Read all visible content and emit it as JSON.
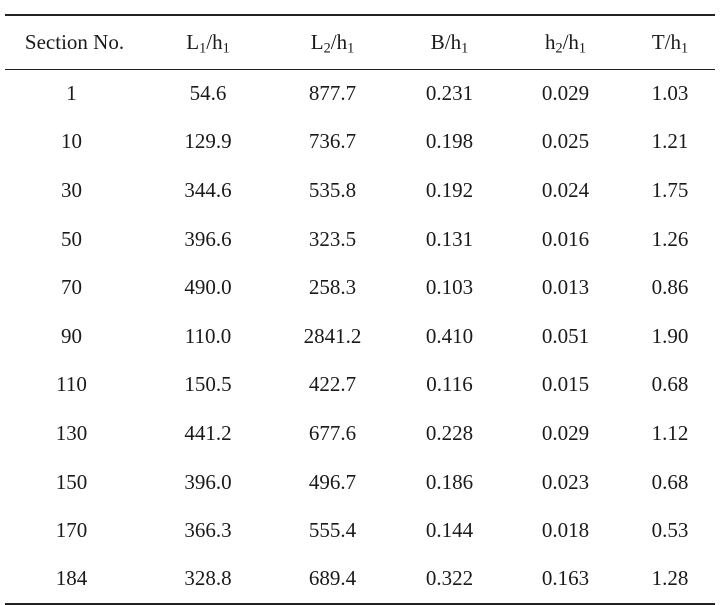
{
  "table": {
    "headers": [
      {
        "main": "Section No.",
        "sub": "",
        "tail": ""
      },
      {
        "main": "L",
        "sub": "1",
        "tail": "/h",
        "sub2": "1"
      },
      {
        "main": "L",
        "sub": "2",
        "tail": "/h",
        "sub2": "1"
      },
      {
        "main": "B/h",
        "sub": "1",
        "tail": "",
        "sub2": ""
      },
      {
        "main": "h",
        "sub": "2",
        "tail": "/h",
        "sub2": "1"
      },
      {
        "main": "T/h",
        "sub": "1",
        "tail": "",
        "sub2": ""
      }
    ],
    "rows": [
      [
        "1",
        "54.6",
        "877.7",
        "0.231",
        "0.029",
        "1.03"
      ],
      [
        "10",
        "129.9",
        "736.7",
        "0.198",
        "0.025",
        "1.21"
      ],
      [
        "30",
        "344.6",
        "535.8",
        "0.192",
        "0.024",
        "1.75"
      ],
      [
        "50",
        "396.6",
        "323.5",
        "0.131",
        "0.016",
        "1.26"
      ],
      [
        "70",
        "490.0",
        "258.3",
        "0.103",
        "0.013",
        "0.86"
      ],
      [
        "90",
        "110.0",
        "2841.2",
        "0.410",
        "0.051",
        "1.90"
      ],
      [
        "110",
        "150.5",
        "422.7",
        "0.116",
        "0.015",
        "0.68"
      ],
      [
        "130",
        "441.2",
        "677.6",
        "0.228",
        "0.029",
        "1.12"
      ],
      [
        "150",
        "396.0",
        "496.7",
        "0.186",
        "0.023",
        "0.68"
      ],
      [
        "170",
        "366.3",
        "555.4",
        "0.144",
        "0.018",
        "0.53"
      ],
      [
        "184",
        "328.8",
        "689.4",
        "0.322",
        "0.163",
        "1.28"
      ]
    ]
  }
}
